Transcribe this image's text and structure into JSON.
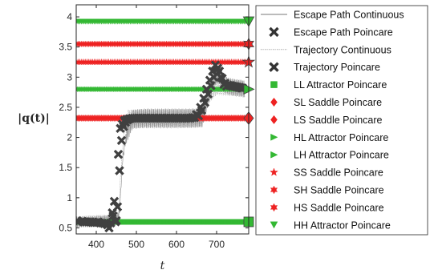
{
  "chart_data": {
    "type": "line",
    "title": "",
    "xlabel": "t",
    "ylabel": "|q(t)|",
    "xlim": [
      350,
      780
    ],
    "ylim": [
      0.4,
      4.2
    ],
    "xticks": [
      "400",
      "500",
      "600",
      "700"
    ],
    "yticks": [
      "0.5",
      "1",
      "1.5",
      "2",
      "2.5",
      "3",
      "3.5",
      "4"
    ],
    "grid": false,
    "legend_position": "right",
    "colors": {
      "trajectory_band": "#9c9c9c",
      "escape_path": "#8c8c8c",
      "poincare_marker": "#404040",
      "attractor_green": "#33b833",
      "saddle_red": "#ee2222"
    },
    "series": [
      {
        "name": "Escape Path Continuous",
        "x": [
          350,
          390,
          430,
          450,
          458,
          465,
          475,
          490,
          520,
          560,
          600,
          640,
          665,
          680,
          695,
          705,
          715,
          730,
          745,
          760,
          770
        ],
        "y": [
          0.6,
          0.6,
          0.62,
          0.63,
          0.75,
          1.6,
          2.05,
          2.3,
          2.32,
          2.32,
          2.32,
          2.32,
          2.33,
          2.7,
          3.0,
          3.05,
          2.9,
          2.85,
          2.83,
          2.82,
          2.8
        ]
      },
      {
        "name": "Escape Path Poincare",
        "x": [
          352,
          365,
          375,
          385,
          395,
          405,
          415,
          425,
          432,
          440,
          445,
          450,
          455,
          460,
          465,
          470,
          476,
          482,
          490,
          500,
          510,
          520,
          530,
          540,
          550,
          560,
          570,
          580,
          590,
          600,
          610,
          620,
          630,
          640,
          650,
          660,
          668,
          675,
          683,
          690,
          697,
          703,
          710,
          718,
          725,
          733,
          740,
          748,
          755,
          762
        ],
        "y": [
          0.62,
          0.61,
          0.6,
          0.6,
          0.59,
          0.6,
          0.58,
          0.57,
          0.5,
          0.75,
          0.94,
          0.62,
          1.72,
          2.15,
          2.22,
          2.28,
          2.3,
          2.31,
          2.32,
          2.32,
          2.32,
          2.32,
          2.32,
          2.32,
          2.32,
          2.32,
          2.32,
          2.32,
          2.32,
          2.32,
          2.32,
          2.32,
          2.32,
          2.33,
          2.38,
          2.5,
          2.65,
          2.8,
          2.95,
          3.1,
          3.2,
          3.15,
          3.0,
          2.88,
          2.85,
          2.86,
          2.85,
          2.84,
          2.83,
          2.82
        ]
      },
      {
        "name": "Trajectory Continuous",
        "x": [
          350,
          390,
          430,
          455,
          462,
          470,
          480,
          500,
          550,
          600,
          650,
          665,
          680,
          700,
          730,
          770
        ],
        "y": [
          0.6,
          0.62,
          0.63,
          0.7,
          1.5,
          2.1,
          2.3,
          2.31,
          2.31,
          2.31,
          2.32,
          2.33,
          2.7,
          2.85,
          2.83,
          2.8
        ]
      },
      {
        "name": "Trajectory Poincare",
        "x": [
          355,
          370,
          380,
          390,
          400,
          410,
          420,
          428,
          436,
          442,
          448,
          453,
          458,
          463,
          468,
          473,
          478,
          485,
          495,
          505,
          515,
          525,
          535,
          545,
          555,
          565,
          575,
          585,
          595,
          605,
          615,
          625,
          635,
          645,
          655,
          663,
          671,
          679,
          686,
          693,
          700,
          707,
          714,
          721,
          728,
          736,
          744,
          751,
          758,
          765
        ],
        "y": [
          0.6,
          0.6,
          0.6,
          0.59,
          0.59,
          0.58,
          0.57,
          0.55,
          0.58,
          0.7,
          0.6,
          0.85,
          1.45,
          1.95,
          2.18,
          2.25,
          2.29,
          2.31,
          2.32,
          2.32,
          2.32,
          2.32,
          2.32,
          2.32,
          2.32,
          2.32,
          2.32,
          2.32,
          2.32,
          2.32,
          2.32,
          2.32,
          2.32,
          2.33,
          2.36,
          2.45,
          2.58,
          2.72,
          2.86,
          3.0,
          3.12,
          3.1,
          2.98,
          2.9,
          2.87,
          2.86,
          2.85,
          2.84,
          2.83,
          2.82
        ]
      }
    ],
    "fixed_points": [
      {
        "name": "LL Attractor Poincare",
        "y": 0.6,
        "marker": "square",
        "color": "#33b833"
      },
      {
        "name": "SL Saddle Poincare",
        "y": 2.32,
        "marker": "diamond",
        "color": "#ee2222"
      },
      {
        "name": "LS Saddle Poincare",
        "y": 2.32,
        "marker": "diamond",
        "color": "#ee2222"
      },
      {
        "name": "HL Attractor Poincare",
        "y": 2.8,
        "marker": "triangle-right",
        "color": "#33b833"
      },
      {
        "name": "LH Attractor Poincare",
        "y": 2.8,
        "marker": "triangle-right",
        "color": "#33b833"
      },
      {
        "name": "SS Saddle Poincare",
        "y": 3.25,
        "marker": "star",
        "color": "#ee2222"
      },
      {
        "name": "SH Saddle Poincare",
        "y": 3.55,
        "marker": "hexagram",
        "color": "#ee2222"
      },
      {
        "name": "HS Saddle Poincare",
        "y": 3.55,
        "marker": "hexagram",
        "color": "#ee2222"
      },
      {
        "name": "HH Attractor Poincare",
        "y": 3.92,
        "marker": "triangle-down",
        "color": "#33b833"
      }
    ],
    "legend": [
      {
        "label": "Escape Path Continuous",
        "symbol": "line"
      },
      {
        "label": "Escape Path Poincare",
        "symbol": "x"
      },
      {
        "label": "Trajectory Continuous",
        "symbol": "dotted"
      },
      {
        "label": "Trajectory Poincare",
        "symbol": "x"
      },
      {
        "label": "LL Attractor Poincare",
        "symbol": "square"
      },
      {
        "label": "SL Saddle Poincare",
        "symbol": "diamond"
      },
      {
        "label": "LS Saddle Poincare",
        "symbol": "diamond"
      },
      {
        "label": "HL Attractor Poincare",
        "symbol": "triangle-right"
      },
      {
        "label": "LH Attractor Poincare",
        "symbol": "triangle-right"
      },
      {
        "label": "SS Saddle Poincare",
        "symbol": "star"
      },
      {
        "label": "SH Saddle Poincare",
        "symbol": "hexagram"
      },
      {
        "label": "HS Saddle Poincare",
        "symbol": "hexagram"
      },
      {
        "label": "HH Attractor Poincare",
        "symbol": "triangle-down"
      }
    ]
  }
}
